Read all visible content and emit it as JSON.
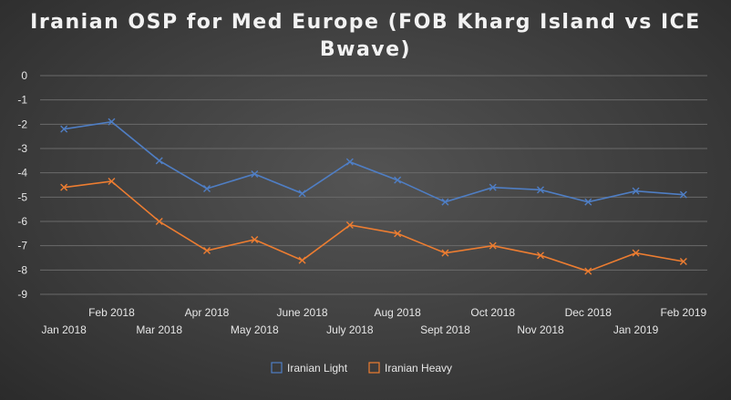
{
  "chart_data": {
    "type": "line",
    "title_lines": [
      "Iranian OSP for Med Europe (FOB Kharg Island vs ICE",
      "Bwave)"
    ],
    "categories": [
      "Jan 2018",
      "Feb 2018",
      "Mar 2018",
      "Apr 2018",
      "May 2018",
      "June 2018",
      "July 2018",
      "Aug 2018",
      "Sept 2018",
      "Oct 2018",
      "Nov 2018",
      "Dec 2018",
      "Jan 2019",
      "Feb 2019"
    ],
    "ylim": [
      -9,
      0
    ],
    "yticks": [
      0,
      -1,
      -2,
      -3,
      -4,
      -5,
      -6,
      -7,
      -8,
      -9
    ],
    "grid": true,
    "legend_position": "bottom",
    "series": [
      {
        "name": "Iranian Light",
        "color": "#4f7ec4",
        "values": [
          -2.2,
          -1.9,
          -3.5,
          -4.65,
          -4.05,
          -4.85,
          -3.55,
          -4.3,
          -5.2,
          -4.6,
          -4.7,
          -5.2,
          -4.75,
          -4.9
        ]
      },
      {
        "name": "Iranian Heavy",
        "color": "#ed7d31",
        "values": [
          -4.6,
          -4.35,
          -6.0,
          -7.2,
          -6.75,
          -7.6,
          -6.15,
          -6.5,
          -7.3,
          -7.0,
          -7.4,
          -8.05,
          -7.3,
          -7.65
        ]
      }
    ]
  }
}
